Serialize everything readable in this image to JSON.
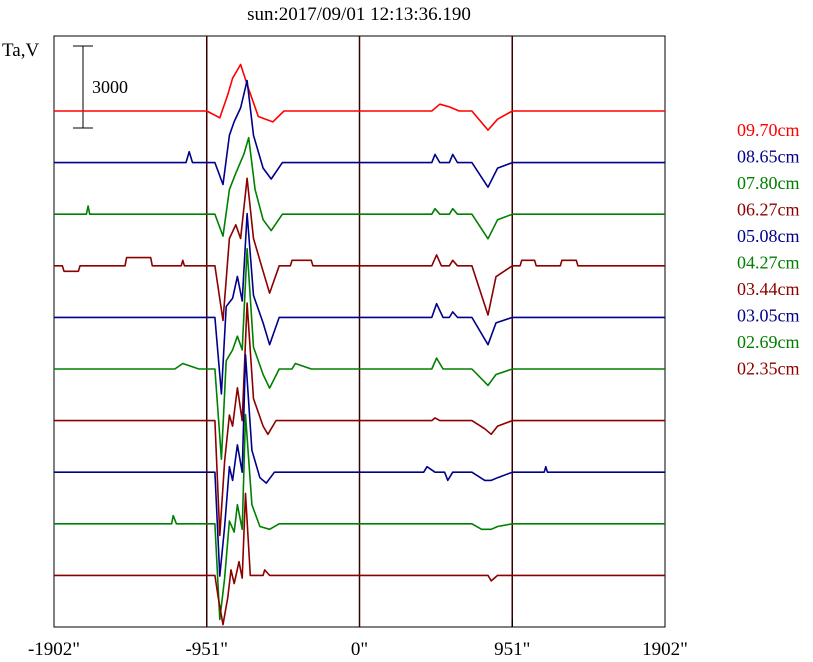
{
  "title": "sun:2017/09/01 12:13:36.190",
  "ylabel": "Ta,V",
  "scale_bar": {
    "label": "3000",
    "value": 3000
  },
  "colors": {
    "red": "#ff0000",
    "blue": "#00008b",
    "green": "#008000",
    "darkred": "#8b0000",
    "axis": "#000000",
    "marker": "#3a0000"
  },
  "chart_data": {
    "type": "line",
    "xlabel": "",
    "ylabel": "Ta,V",
    "xlim": [
      -1902,
      1902
    ],
    "x_ticks": [
      -1902,
      -951,
      0,
      951,
      1902
    ],
    "x_tick_labels": [
      "-1902\"",
      "-951\"",
      "0\"",
      "951\"",
      "1902\""
    ],
    "vertical_markers": [
      -951,
      0,
      951
    ],
    "legend_position": "right",
    "series": [
      {
        "name": "09.70cm",
        "color": "red",
        "points": [
          [
            -1902,
            0
          ],
          [
            -951,
            0
          ],
          [
            -870,
            -250
          ],
          [
            -820,
            600
          ],
          [
            -790,
            1200
          ],
          [
            -740,
            1700
          ],
          [
            -690,
            800
          ],
          [
            -630,
            -200
          ],
          [
            -540,
            -400
          ],
          [
            -470,
            0
          ],
          [
            0,
            0
          ],
          [
            450,
            0
          ],
          [
            500,
            250
          ],
          [
            560,
            150
          ],
          [
            620,
            0
          ],
          [
            700,
            0
          ],
          [
            800,
            -700
          ],
          [
            860,
            -300
          ],
          [
            951,
            0
          ],
          [
            1902,
            0
          ]
        ]
      },
      {
        "name": "08.65cm",
        "color": "blue",
        "points": [
          [
            -1902,
            0
          ],
          [
            -1080,
            0
          ],
          [
            -1060,
            400
          ],
          [
            -1040,
            0
          ],
          [
            -900,
            0
          ],
          [
            -850,
            -800
          ],
          [
            -810,
            1000
          ],
          [
            -780,
            1500
          ],
          [
            -740,
            2000
          ],
          [
            -700,
            3000
          ],
          [
            -660,
            1000
          ],
          [
            -600,
            -200
          ],
          [
            -550,
            -600
          ],
          [
            -480,
            0
          ],
          [
            0,
            0
          ],
          [
            450,
            0
          ],
          [
            470,
            300
          ],
          [
            500,
            0
          ],
          [
            560,
            0
          ],
          [
            580,
            300
          ],
          [
            610,
            0
          ],
          [
            700,
            0
          ],
          [
            800,
            -900
          ],
          [
            860,
            -200
          ],
          [
            951,
            0
          ],
          [
            1902,
            0
          ]
        ]
      },
      {
        "name": "07.80cm",
        "color": "green",
        "points": [
          [
            -1902,
            0
          ],
          [
            -1700,
            0
          ],
          [
            -1690,
            300
          ],
          [
            -1680,
            0
          ],
          [
            -900,
            0
          ],
          [
            -850,
            -800
          ],
          [
            -810,
            900
          ],
          [
            -770,
            1500
          ],
          [
            -720,
            2200
          ],
          [
            -690,
            2800
          ],
          [
            -650,
            900
          ],
          [
            -600,
            -200
          ],
          [
            -550,
            -600
          ],
          [
            -480,
            0
          ],
          [
            0,
            0
          ],
          [
            450,
            0
          ],
          [
            470,
            200
          ],
          [
            500,
            0
          ],
          [
            560,
            0
          ],
          [
            580,
            200
          ],
          [
            610,
            0
          ],
          [
            700,
            0
          ],
          [
            800,
            -900
          ],
          [
            860,
            -200
          ],
          [
            951,
            0
          ],
          [
            1902,
            0
          ]
        ]
      },
      {
        "name": "06.27cm",
        "color": "darkred",
        "points": [
          [
            -1902,
            0
          ],
          [
            -1850,
            0
          ],
          [
            -1840,
            -200
          ],
          [
            -1750,
            -200
          ],
          [
            -1740,
            0
          ],
          [
            -1460,
            0
          ],
          [
            -1450,
            300
          ],
          [
            -1300,
            300
          ],
          [
            -1290,
            0
          ],
          [
            -1110,
            0
          ],
          [
            -1100,
            200
          ],
          [
            -1090,
            0
          ],
          [
            -900,
            0
          ],
          [
            -850,
            -2000
          ],
          [
            -810,
            1000
          ],
          [
            -770,
            1500
          ],
          [
            -740,
            1000
          ],
          [
            -700,
            3200
          ],
          [
            -660,
            1000
          ],
          [
            -600,
            -200
          ],
          [
            -560,
            -1000
          ],
          [
            -500,
            0
          ],
          [
            -430,
            0
          ],
          [
            -420,
            200
          ],
          [
            -300,
            200
          ],
          [
            -290,
            0
          ],
          [
            0,
            0
          ],
          [
            450,
            0
          ],
          [
            480,
            400
          ],
          [
            510,
            0
          ],
          [
            560,
            0
          ],
          [
            580,
            200
          ],
          [
            610,
            0
          ],
          [
            700,
            0
          ],
          [
            800,
            -1800
          ],
          [
            850,
            -400
          ],
          [
            951,
            0
          ],
          [
            1000,
            0
          ],
          [
            1010,
            200
          ],
          [
            1090,
            200
          ],
          [
            1100,
            0
          ],
          [
            1250,
            0
          ],
          [
            1260,
            200
          ],
          [
            1350,
            200
          ],
          [
            1360,
            0
          ],
          [
            1902,
            0
          ]
        ]
      },
      {
        "name": "05.08cm",
        "color": "blue",
        "points": [
          [
            -1902,
            0
          ],
          [
            -900,
            0
          ],
          [
            -860,
            -2800
          ],
          [
            -830,
            400
          ],
          [
            -790,
            700
          ],
          [
            -760,
            1500
          ],
          [
            -730,
            600
          ],
          [
            -700,
            3800
          ],
          [
            -660,
            800
          ],
          [
            -600,
            -200
          ],
          [
            -560,
            -1000
          ],
          [
            -500,
            0
          ],
          [
            0,
            0
          ],
          [
            450,
            0
          ],
          [
            480,
            500
          ],
          [
            520,
            0
          ],
          [
            560,
            0
          ],
          [
            580,
            200
          ],
          [
            610,
            0
          ],
          [
            700,
            0
          ],
          [
            800,
            -1000
          ],
          [
            850,
            -200
          ],
          [
            951,
            0
          ],
          [
            1902,
            0
          ]
        ]
      },
      {
        "name": "04.27cm",
        "color": "green",
        "points": [
          [
            -1902,
            0
          ],
          [
            -1150,
            0
          ],
          [
            -1100,
            200
          ],
          [
            -1000,
            0
          ],
          [
            -900,
            0
          ],
          [
            -860,
            -3300
          ],
          [
            -830,
            300
          ],
          [
            -790,
            700
          ],
          [
            -760,
            1200
          ],
          [
            -730,
            700
          ],
          [
            -700,
            4400
          ],
          [
            -660,
            800
          ],
          [
            -600,
            -200
          ],
          [
            -560,
            -700
          ],
          [
            -500,
            0
          ],
          [
            -420,
            0
          ],
          [
            -400,
            200
          ],
          [
            -300,
            0
          ],
          [
            0,
            0
          ],
          [
            450,
            0
          ],
          [
            480,
            400
          ],
          [
            520,
            0
          ],
          [
            700,
            0
          ],
          [
            800,
            -600
          ],
          [
            850,
            -200
          ],
          [
            951,
            0
          ],
          [
            1902,
            0
          ]
        ]
      },
      {
        "name": "03.44cm",
        "color": "darkred",
        "points": [
          [
            -1902,
            0
          ],
          [
            -900,
            0
          ],
          [
            -870,
            -4200
          ],
          [
            -840,
            -1500
          ],
          [
            -810,
            200
          ],
          [
            -790,
            -200
          ],
          [
            -760,
            1200
          ],
          [
            -730,
            0
          ],
          [
            -700,
            4300
          ],
          [
            -660,
            800
          ],
          [
            -600,
            -200
          ],
          [
            -570,
            -500
          ],
          [
            -520,
            0
          ],
          [
            0,
            0
          ],
          [
            450,
            0
          ],
          [
            470,
            100
          ],
          [
            500,
            0
          ],
          [
            700,
            0
          ],
          [
            780,
            -300
          ],
          [
            820,
            -500
          ],
          [
            860,
            -200
          ],
          [
            951,
            0
          ],
          [
            1902,
            0
          ]
        ]
      },
      {
        "name": "03.05cm",
        "color": "blue",
        "points": [
          [
            -1902,
            0
          ],
          [
            -900,
            0
          ],
          [
            -870,
            -3800
          ],
          [
            -840,
            -2000
          ],
          [
            -810,
            200
          ],
          [
            -790,
            -300
          ],
          [
            -760,
            1000
          ],
          [
            -730,
            0
          ],
          [
            -710,
            4300
          ],
          [
            -670,
            800
          ],
          [
            -620,
            -200
          ],
          [
            -580,
            -400
          ],
          [
            -530,
            0
          ],
          [
            0,
            0
          ],
          [
            400,
            0
          ],
          [
            420,
            200
          ],
          [
            470,
            0
          ],
          [
            530,
            0
          ],
          [
            550,
            -300
          ],
          [
            580,
            0
          ],
          [
            700,
            0
          ],
          [
            780,
            -300
          ],
          [
            820,
            -300
          ],
          [
            860,
            -200
          ],
          [
            951,
            0
          ],
          [
            1150,
            0
          ],
          [
            1160,
            200
          ],
          [
            1170,
            0
          ],
          [
            1902,
            0
          ]
        ]
      },
      {
        "name": "02.69cm",
        "color": "green",
        "points": [
          [
            -1902,
            0
          ],
          [
            -1170,
            0
          ],
          [
            -1160,
            300
          ],
          [
            -1140,
            0
          ],
          [
            -900,
            0
          ],
          [
            -870,
            -3500
          ],
          [
            -840,
            -2000
          ],
          [
            -810,
            100
          ],
          [
            -780,
            -300
          ],
          [
            -760,
            700
          ],
          [
            -730,
            -200
          ],
          [
            -710,
            4000
          ],
          [
            -670,
            700
          ],
          [
            -620,
            -100
          ],
          [
            -560,
            -200
          ],
          [
            -500,
            0
          ],
          [
            0,
            0
          ],
          [
            700,
            0
          ],
          [
            760,
            -200
          ],
          [
            820,
            -200
          ],
          [
            860,
            -100
          ],
          [
            951,
            0
          ],
          [
            1902,
            0
          ]
        ]
      },
      {
        "name": "02.35cm",
        "color": "darkred",
        "points": [
          [
            -1902,
            0
          ],
          [
            -900,
            0
          ],
          [
            -880,
            -800
          ],
          [
            -850,
            -1800
          ],
          [
            -820,
            -800
          ],
          [
            -800,
            200
          ],
          [
            -780,
            -300
          ],
          [
            -750,
            500
          ],
          [
            -730,
            -100
          ],
          [
            -710,
            3000
          ],
          [
            -680,
            0
          ],
          [
            -600,
            0
          ],
          [
            -590,
            200
          ],
          [
            -560,
            0
          ],
          [
            0,
            0
          ],
          [
            800,
            0
          ],
          [
            820,
            -200
          ],
          [
            860,
            0
          ],
          [
            951,
            0
          ],
          [
            1902,
            0
          ]
        ]
      }
    ]
  }
}
